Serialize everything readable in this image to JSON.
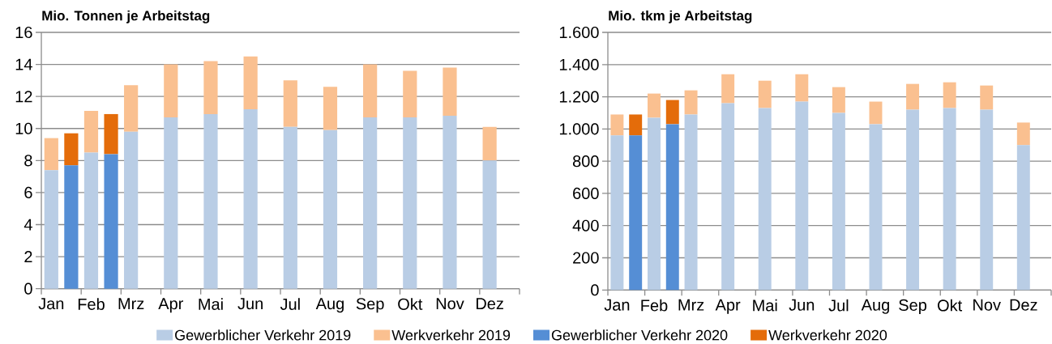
{
  "chart_data": [
    {
      "type": "bar",
      "ylabel": "Mio. Tonnen je Arbeitstag",
      "categories": [
        "Jan",
        null,
        "Feb",
        null,
        "Mrz",
        null,
        "Apr",
        null,
        "Mai",
        null,
        "Jun",
        null,
        "Jul",
        null,
        "Aug",
        null,
        "Sep",
        null,
        "Okt",
        null,
        "Nov",
        null,
        "Dez",
        null
      ],
      "stacked": true,
      "series": [
        {
          "name": "Gewerblicher Verkehr 2019",
          "color": "#b9cde5",
          "values": [
            7.4,
            null,
            8.5,
            null,
            9.8,
            null,
            10.7,
            null,
            10.9,
            null,
            11.2,
            null,
            10.1,
            null,
            9.9,
            null,
            10.7,
            null,
            10.7,
            null,
            10.8,
            null,
            8.0,
            null
          ]
        },
        {
          "name": "Werkverkehr 2019",
          "color": "#fac090",
          "values": [
            2.0,
            null,
            2.6,
            null,
            2.9,
            null,
            3.3,
            null,
            3.3,
            null,
            3.3,
            null,
            2.9,
            null,
            2.7,
            null,
            3.3,
            null,
            2.9,
            null,
            3.0,
            null,
            2.1,
            null
          ]
        },
        {
          "name": "Gewerblicher Verkehr 2020",
          "color": "#558ed5",
          "values": [
            null,
            7.7,
            null,
            8.4,
            null,
            null,
            null,
            null,
            null,
            null,
            null,
            null,
            null,
            null,
            null,
            null,
            null,
            null,
            null,
            null,
            null,
            null,
            null,
            null
          ]
        },
        {
          "name": "Werkverkehr 2020",
          "color": "#e46c0a",
          "values": [
            null,
            2.0,
            null,
            2.5,
            null,
            null,
            null,
            null,
            null,
            null,
            null,
            null,
            null,
            null,
            null,
            null,
            null,
            null,
            null,
            null,
            null,
            null,
            null,
            null
          ]
        }
      ],
      "ylim": [
        0,
        16
      ],
      "yticks": [
        0,
        2,
        4,
        6,
        8,
        10,
        12,
        14,
        16
      ],
      "grid": "y",
      "legend": "bottom"
    },
    {
      "type": "bar",
      "ylabel": "Mio. tkm je Arbeitstag",
      "categories": [
        "Jan",
        null,
        "Feb",
        null,
        "Mrz",
        null,
        "Apr",
        null,
        "Mai",
        null,
        "Jun",
        null,
        "Jul",
        null,
        "Aug",
        null,
        "Sep",
        null,
        "Okt",
        null,
        "Nov",
        null,
        "Dez",
        null
      ],
      "stacked": true,
      "series": [
        {
          "color": "#b9cde5",
          "values": [
            960,
            null,
            1070,
            null,
            1090,
            null,
            1160,
            null,
            1130,
            null,
            1170,
            null,
            1100,
            null,
            1030,
            null,
            1120,
            null,
            1130,
            null,
            1120,
            null,
            900,
            null
          ]
        },
        {
          "color": "#fac090",
          "values": [
            130,
            null,
            150,
            null,
            150,
            null,
            180,
            null,
            170,
            null,
            170,
            null,
            160,
            null,
            140,
            null,
            160,
            null,
            160,
            null,
            150,
            null,
            140,
            null
          ]
        },
        {
          "color": "#558ed5",
          "values": [
            null,
            960,
            null,
            1030,
            null,
            null,
            null,
            null,
            null,
            null,
            null,
            null,
            null,
            null,
            null,
            null,
            null,
            null,
            null,
            null,
            null,
            null,
            null,
            null
          ]
        },
        {
          "color": "#e46c0a",
          "values": [
            null,
            130,
            null,
            150,
            null,
            null,
            null,
            null,
            null,
            null,
            null,
            null,
            null,
            null,
            null,
            null,
            null,
            null,
            null,
            null,
            null,
            null,
            null,
            null
          ]
        }
      ],
      "ylim": [
        0,
        1600
      ],
      "yticks": [
        0,
        200,
        400,
        600,
        800,
        {
          "value": 1000,
          "label": "1.000"
        },
        {
          "value": 1200,
          "label": "1.200"
        },
        {
          "value": 1400,
          "label": "1.400"
        },
        {
          "value": 1600,
          "label": "1.600"
        }
      ],
      "grid": "y"
    }
  ]
}
